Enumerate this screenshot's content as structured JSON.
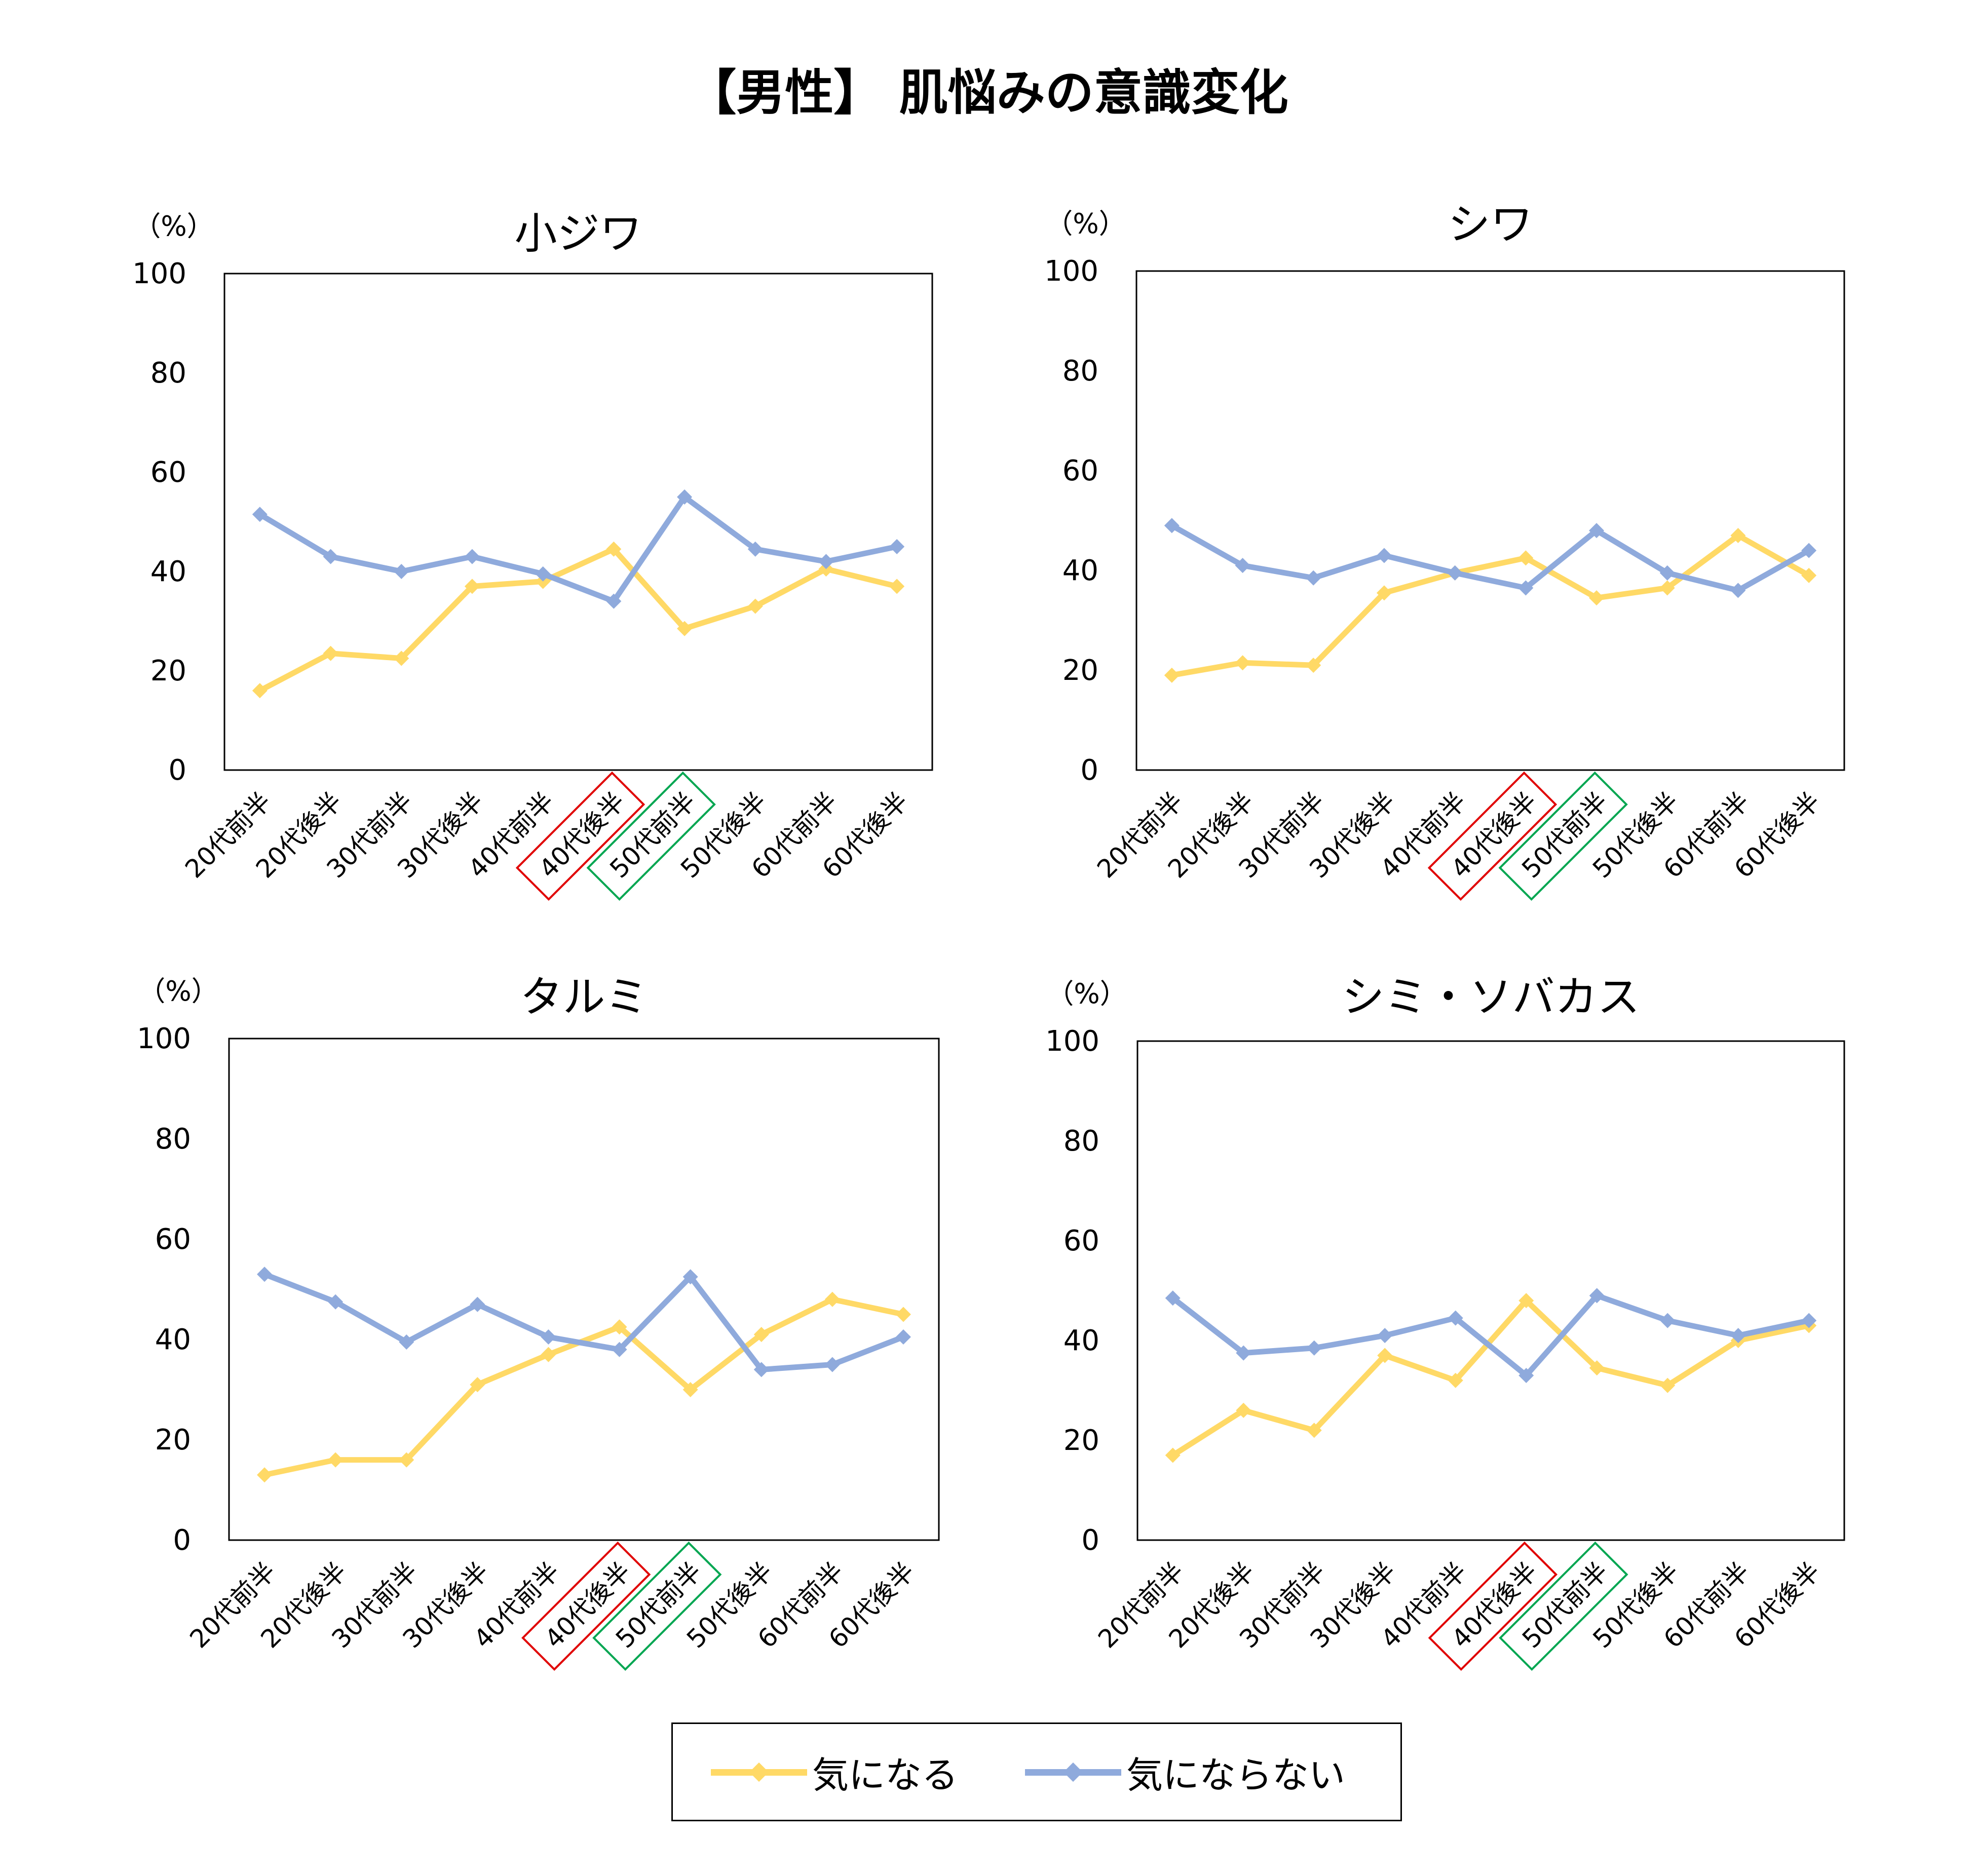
{
  "title": "【男性】 肌悩みの意識変化",
  "colors": {
    "concerned": "#FFD966",
    "not_concerned": "#8FAADC",
    "highlight_red": "#E00000",
    "highlight_green": "#00A651"
  },
  "legend": {
    "concerned": "気になる",
    "not_concerned": "気にならない"
  },
  "chart_data": [
    {
      "type": "line",
      "title": "小ジワ",
      "ylabel": "（%）",
      "ylim": [
        0,
        100
      ],
      "yticks": [
        "0",
        "20",
        "40",
        "60",
        "80",
        "100"
      ],
      "categories": [
        "20代前半",
        "20代後半",
        "30代前半",
        "30代後半",
        "40代前半",
        "40代後半",
        "50代前半",
        "50代後半",
        "60代前半",
        "60代後半"
      ],
      "highlight_red": "40代後半",
      "highlight_green": "50代前半",
      "series": [
        {
          "name": "気になる",
          "values": [
            16,
            23.5,
            22.5,
            37,
            38,
            44.5,
            28.5,
            33,
            40.5,
            37
          ]
        },
        {
          "name": "気にならない",
          "values": [
            51.5,
            43,
            40,
            43,
            39.5,
            34,
            55,
            44.5,
            42,
            45
          ]
        }
      ]
    },
    {
      "type": "line",
      "title": "シワ",
      "ylabel": "（%）",
      "ylim": [
        0,
        100
      ],
      "yticks": [
        "0",
        "20",
        "40",
        "60",
        "80",
        "100"
      ],
      "categories": [
        "20代前半",
        "20代後半",
        "30代前半",
        "30代後半",
        "40代前半",
        "40代後半",
        "50代前半",
        "50代後半",
        "60代前半",
        "60代後半"
      ],
      "highlight_red": "40代後半",
      "highlight_green": "50代前半",
      "series": [
        {
          "name": "気になる",
          "values": [
            19,
            21.5,
            21,
            35.5,
            39.5,
            42.5,
            34.5,
            36.5,
            47,
            39
          ]
        },
        {
          "name": "気にならない",
          "values": [
            49,
            41,
            38.5,
            43,
            39.5,
            36.5,
            48,
            39.5,
            36,
            44
          ]
        }
      ]
    },
    {
      "type": "line",
      "title": "タルミ",
      "ylabel": "（%）",
      "ylim": [
        0,
        100
      ],
      "yticks": [
        "0",
        "20",
        "40",
        "60",
        "80",
        "100"
      ],
      "categories": [
        "20代前半",
        "20代後半",
        "30代前半",
        "30代後半",
        "40代前半",
        "40代後半",
        "50代前半",
        "50代後半",
        "60代前半",
        "60代後半"
      ],
      "highlight_red": "40代後半",
      "highlight_green": "50代前半",
      "series": [
        {
          "name": "気になる",
          "values": [
            13,
            16,
            16,
            31,
            37,
            42.5,
            30,
            41,
            48,
            45
          ]
        },
        {
          "name": "気にならない",
          "values": [
            53,
            47.5,
            39.5,
            47,
            40.5,
            38,
            52.5,
            34,
            35,
            40.5
          ]
        }
      ]
    },
    {
      "type": "line",
      "title": "シミ・ソバカス",
      "ylabel": "（%）",
      "ylim": [
        0,
        100
      ],
      "yticks": [
        "0",
        "20",
        "40",
        "60",
        "80",
        "100"
      ],
      "categories": [
        "20代前半",
        "20代後半",
        "30代前半",
        "30代後半",
        "40代前半",
        "40代後半",
        "50代前半",
        "50代後半",
        "60代前半",
        "60代後半"
      ],
      "highlight_red": "40代後半",
      "highlight_green": "50代前半",
      "series": [
        {
          "name": "気になる",
          "values": [
            17,
            26,
            22,
            37,
            32,
            48,
            34.5,
            31,
            40,
            43
          ]
        },
        {
          "name": "気にならない",
          "values": [
            48.5,
            37.5,
            38.5,
            41,
            44.5,
            33,
            49,
            44,
            41,
            44
          ]
        }
      ]
    }
  ]
}
